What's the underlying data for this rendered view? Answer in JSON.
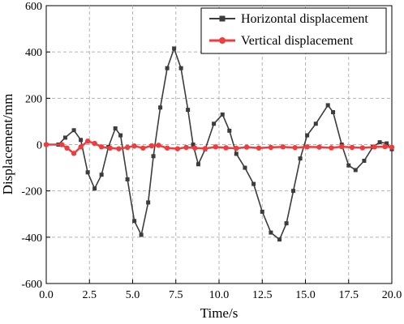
{
  "chart_data": {
    "type": "line",
    "title": "",
    "xlabel": "Time/s",
    "ylabel": "Displacement/mm",
    "xlim": [
      0,
      20
    ],
    "ylim": [
      -600,
      600
    ],
    "xticks": [
      "0.0",
      "2.5",
      "5.0",
      "7.5",
      "10.0",
      "12.5",
      "15.0",
      "17.5",
      "20.0"
    ],
    "yticks": [
      "600",
      "400",
      "200",
      "0",
      "-200",
      "-400",
      "-600"
    ],
    "grid": true,
    "legend_position": "top-right",
    "series": [
      {
        "name": "Horizontal displacement",
        "color": "#3c3c3c",
        "marker": "square",
        "points": [
          [
            0.0,
            0
          ],
          [
            0.7,
            0
          ],
          [
            1.1,
            30
          ],
          [
            1.6,
            62
          ],
          [
            2.0,
            20
          ],
          [
            2.4,
            -120
          ],
          [
            2.8,
            -190
          ],
          [
            3.2,
            -130
          ],
          [
            3.6,
            -10
          ],
          [
            4.0,
            70
          ],
          [
            4.3,
            40
          ],
          [
            4.7,
            -150
          ],
          [
            5.1,
            -330
          ],
          [
            5.5,
            -390
          ],
          [
            5.9,
            -250
          ],
          [
            6.2,
            -50
          ],
          [
            6.6,
            160
          ],
          [
            7.0,
            330
          ],
          [
            7.4,
            415
          ],
          [
            7.8,
            330
          ],
          [
            8.2,
            150
          ],
          [
            8.5,
            0
          ],
          [
            8.8,
            -85
          ],
          [
            9.2,
            -20
          ],
          [
            9.7,
            90
          ],
          [
            10.2,
            130
          ],
          [
            10.6,
            60
          ],
          [
            11.0,
            -40
          ],
          [
            11.5,
            -100
          ],
          [
            12.0,
            -170
          ],
          [
            12.5,
            -290
          ],
          [
            13.0,
            -380
          ],
          [
            13.5,
            -410
          ],
          [
            13.9,
            -340
          ],
          [
            14.3,
            -200
          ],
          [
            14.7,
            -60
          ],
          [
            15.1,
            40
          ],
          [
            15.6,
            90
          ],
          [
            16.3,
            170
          ],
          [
            16.6,
            140
          ],
          [
            17.1,
            0
          ],
          [
            17.5,
            -90
          ],
          [
            17.9,
            -110
          ],
          [
            18.4,
            -70
          ],
          [
            18.9,
            -10
          ],
          [
            19.3,
            10
          ],
          [
            19.7,
            5
          ],
          [
            20.0,
            -20
          ]
        ]
      },
      {
        "name": "Vertical displacement",
        "color": "#f03c3c",
        "marker": "circle",
        "points": [
          [
            0.0,
            0
          ],
          [
            0.9,
            0
          ],
          [
            1.2,
            -15
          ],
          [
            1.6,
            -38
          ],
          [
            2.0,
            -10
          ],
          [
            2.4,
            15
          ],
          [
            2.8,
            5
          ],
          [
            3.2,
            -10
          ],
          [
            3.7,
            -15
          ],
          [
            4.2,
            -18
          ],
          [
            4.7,
            -12
          ],
          [
            5.1,
            -6
          ],
          [
            5.6,
            -15
          ],
          [
            6.1,
            -5
          ],
          [
            6.5,
            -3
          ],
          [
            7.0,
            -15
          ],
          [
            7.6,
            -18
          ],
          [
            8.1,
            -12
          ],
          [
            8.6,
            -15
          ],
          [
            9.2,
            -17
          ],
          [
            9.8,
            -10
          ],
          [
            10.4,
            -14
          ],
          [
            11.0,
            -16
          ],
          [
            11.6,
            -11
          ],
          [
            12.3,
            -15
          ],
          [
            13.0,
            -12
          ],
          [
            13.7,
            -10
          ],
          [
            14.4,
            -13
          ],
          [
            15.1,
            -10
          ],
          [
            15.8,
            -11
          ],
          [
            16.5,
            -14
          ],
          [
            17.1,
            -9
          ],
          [
            17.7,
            -12
          ],
          [
            18.3,
            -14
          ],
          [
            19.0,
            -10
          ],
          [
            19.6,
            -9
          ],
          [
            20.0,
            -11
          ]
        ]
      }
    ]
  }
}
